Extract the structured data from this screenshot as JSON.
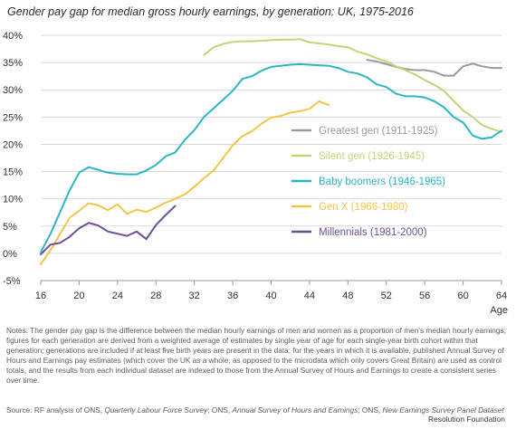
{
  "chart_data": {
    "type": "line",
    "title": "Gender pay gap for median gross hourly earnings, by generation: UK, 1975-2016",
    "xlabel": "Age",
    "ylabel": "",
    "xlim": [
      16,
      64
    ],
    "ylim": [
      -5,
      40
    ],
    "xticks": [
      16,
      20,
      24,
      28,
      32,
      36,
      40,
      44,
      48,
      52,
      56,
      60,
      64
    ],
    "yticks": [
      -5,
      0,
      5,
      10,
      15,
      20,
      25,
      30,
      35,
      40
    ],
    "grid": "horizontal",
    "legend_position": "inside-right",
    "series": [
      {
        "name": "Greatest gen (1911-1925)",
        "color": "#9b9b9b",
        "x": [
          50,
          51,
          52,
          53,
          54,
          55,
          56,
          57,
          58,
          59,
          60,
          61,
          62,
          63,
          64
        ],
        "y": [
          35.5,
          35.2,
          34.7,
          34.2,
          33.8,
          33.6,
          33.6,
          33.3,
          32.6,
          32.6,
          34.3,
          34.8,
          34.3,
          34.0,
          34.0
        ]
      },
      {
        "name": "Silent gen (1926-1945)",
        "color": "#c2d47a",
        "x": [
          33,
          34,
          35,
          36,
          37,
          38,
          39,
          40,
          41,
          42,
          43,
          44,
          45,
          46,
          47,
          48,
          49,
          50,
          51,
          52,
          53,
          54,
          55,
          56,
          57,
          58,
          59,
          60,
          61,
          62,
          63,
          64
        ],
        "y": [
          36.4,
          37.8,
          38.4,
          38.8,
          38.9,
          38.9,
          39.0,
          39.1,
          39.2,
          39.2,
          39.3,
          38.7,
          38.5,
          38.3,
          38.0,
          37.8,
          37.0,
          36.5,
          35.8,
          35.2,
          34.3,
          33.6,
          32.8,
          31.8,
          30.9,
          29.8,
          28.0,
          26.2,
          25.0,
          23.5,
          22.8,
          22.3
        ]
      },
      {
        "name": "Baby boomers (1946-1965)",
        "color": "#2bb6c2",
        "x": [
          16,
          17,
          18,
          19,
          20,
          21,
          22,
          23,
          24,
          25,
          26,
          27,
          28,
          29,
          30,
          31,
          32,
          33,
          34,
          35,
          36,
          37,
          38,
          39,
          40,
          41,
          42,
          43,
          44,
          45,
          46,
          47,
          48,
          49,
          50,
          51,
          52,
          53,
          54,
          55,
          56,
          57,
          58,
          59,
          60,
          61,
          62,
          63,
          64
        ],
        "y": [
          0.2,
          3.5,
          7.5,
          11.5,
          14.8,
          15.8,
          15.3,
          14.8,
          14.6,
          14.5,
          14.5,
          15.2,
          16.2,
          17.8,
          18.5,
          20.8,
          22.6,
          25.0,
          26.6,
          28.2,
          29.8,
          32.0,
          32.5,
          33.5,
          34.2,
          34.4,
          34.6,
          34.7,
          34.6,
          34.5,
          34.4,
          34.0,
          33.3,
          33.0,
          32.3,
          31.0,
          30.5,
          29.3,
          28.8,
          28.8,
          28.6,
          27.9,
          26.8,
          25.0,
          24.0,
          21.6,
          21.0,
          21.3,
          22.5
        ]
      },
      {
        "name": "Gen X (1966-1980)",
        "color": "#f3c54a",
        "x": [
          16,
          17,
          18,
          19,
          20,
          21,
          22,
          23,
          24,
          25,
          26,
          27,
          28,
          29,
          30,
          31,
          32,
          33,
          34,
          35,
          36,
          37,
          38,
          39,
          40,
          41,
          42,
          43,
          44,
          45,
          46
        ],
        "y": [
          -2.0,
          0.5,
          3.5,
          6.5,
          7.8,
          9.2,
          8.8,
          7.9,
          9.0,
          7.2,
          8.0,
          7.6,
          8.4,
          9.3,
          10.0,
          10.8,
          12.2,
          13.8,
          15.2,
          17.5,
          19.8,
          21.5,
          22.4,
          23.8,
          24.9,
          25.2,
          25.8,
          26.1,
          26.5,
          27.9,
          27.2
        ]
      },
      {
        "name": "Millennials (1981-2000)",
        "color": "#6e4f96",
        "x": [
          16,
          17,
          18,
          19,
          20,
          21,
          22,
          23,
          24,
          25,
          26,
          27,
          28,
          29,
          30
        ],
        "y": [
          -0.2,
          1.6,
          1.9,
          3.0,
          4.6,
          5.6,
          5.1,
          4.0,
          3.6,
          3.2,
          4.0,
          2.6,
          5.2,
          7.0,
          8.7
        ]
      }
    ]
  },
  "notes": "Notes: The gender pay gap is the difference between the median hourly earnings of men and women as a proportion of men's median hourly earnings; figures for each generation are derived from a weighted average of estimates by single year of age for each single-year birth cohort within that generation; generations are included if at least five birth years are present in the data; for the years in which it is available, published Annual Survey of Hours and Earnings pay estimates (which cover the UK as a whole, as opposed to the microdata which only covers Great Britain) are used as control totals, and the results from each individual dataset are indexed to those from the Annual Survey of Hours and Earnings to create a consistent series over time.",
  "source": {
    "lead": "Source: RF analysis of ONS, ",
    "lfs": "Quarterly Labour Force Survey",
    "mid": "; ONS, ",
    "ashe": "Annual Survey of Hours and Earnings",
    "mid2": "; ONS, ",
    "nes": "New Earnings Survey Panel Dataset"
  },
  "brand": "Resolution Foundation"
}
